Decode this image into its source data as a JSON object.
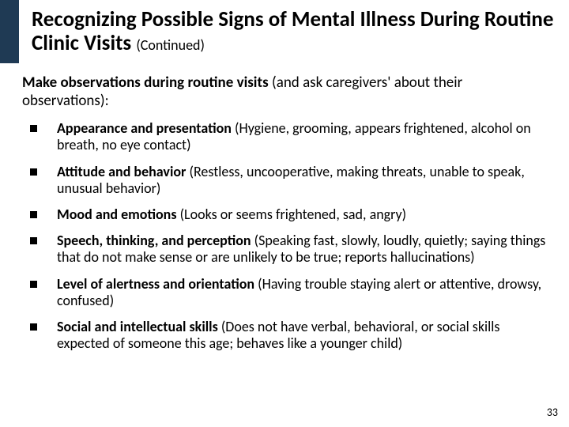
{
  "colors": {
    "header_bg": "#1f3a54",
    "page_bg": "#ffffff",
    "text": "#000000",
    "bullet": "#000000"
  },
  "typography": {
    "title_fontsize_pt": 27,
    "title_suffix_fontsize_pt": 18,
    "intro_fontsize_pt": 19,
    "bullet_fontsize_pt": 18,
    "pagenum_fontsize_pt": 14,
    "font_family": "Calibri"
  },
  "title": {
    "main": "Recognizing Possible Signs of Mental Illness During Routine Clinic Visits ",
    "suffix": "(Continued)"
  },
  "intro": {
    "bold": "Make observations during routine visits ",
    "rest": "(and ask caregivers' about their observations):"
  },
  "bullets": [
    {
      "lead": "Appearance and presentation ",
      "detail": "(Hygiene, grooming, appears frightened, alcohol on breath, no eye contact)"
    },
    {
      "lead": "Attitude and behavior ",
      "detail": "(Restless, uncooperative, making threats, unable to speak, unusual behavior)"
    },
    {
      "lead": "Mood and emotions ",
      "detail": "(Looks or seems frightened, sad, angry)"
    },
    {
      "lead": "Speech, thinking, and perception ",
      "detail": "(Speaking fast, slowly, loudly, quietly; saying things that do not make sense or are unlikely to be true; reports hallucinations)"
    },
    {
      "lead": "Level of alertness and orientation ",
      "detail": "(Having trouble staying alert or attentive, drowsy, confused)"
    },
    {
      "lead": "Social and intellectual skills ",
      "detail": "(Does not have verbal, behavioral, or social skills expected of someone this age; behaves like a younger child)"
    }
  ],
  "page_number": "33"
}
